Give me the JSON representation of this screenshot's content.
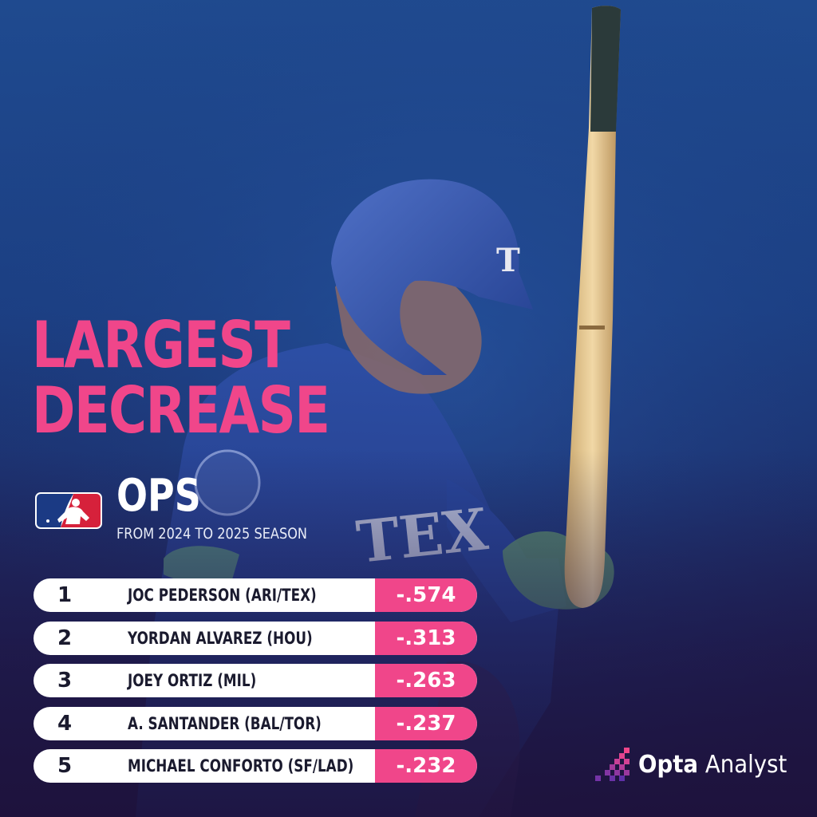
{
  "headline": {
    "line1": "LARGEST",
    "line2": "DECREASE"
  },
  "metric": "OPS",
  "subtitle": "FROM 2024 TO 2025 SEASON",
  "league_logo": "mlb-logo",
  "colors": {
    "accent": "#f0468a",
    "row_bg": "#ffffff",
    "text_dark": "#1a1a2e",
    "background_top": "#1f4a8f",
    "background_bottom": "#1e1540"
  },
  "rows": [
    {
      "rank": "1",
      "player": "JOC PEDERSON (ARI/TEX)",
      "value": "-.574"
    },
    {
      "rank": "2",
      "player": "YORDAN ALVAREZ (HOU)",
      "value": "-.313"
    },
    {
      "rank": "3",
      "player": "JOEY ORTIZ (MIL)",
      "value": "-.263"
    },
    {
      "rank": "4",
      "player": "A. SANTANDER (BAL/TOR)",
      "value": "-.237"
    },
    {
      "rank": "5",
      "player": "MICHAEL CONFORTO (SF/LAD)",
      "value": "-.232"
    }
  ],
  "brand": {
    "name_bold": "Opta",
    "name_light": "Analyst",
    "icon": "opta-pixel-icon"
  }
}
